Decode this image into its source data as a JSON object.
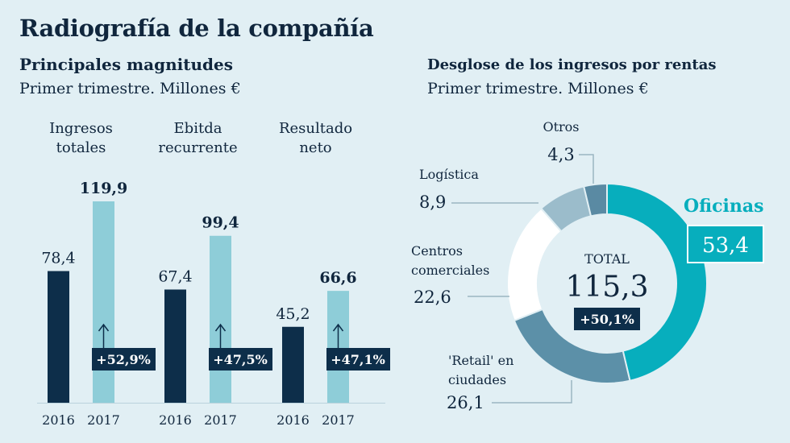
{
  "title": "Radiografía de la compañía",
  "left_panel": {
    "title": "Principales magnitudes",
    "subtitle": "Primer trimestre. Millones €"
  },
  "right_panel": {
    "title": "Desglose de los ingresos por rentas",
    "subtitle": "Primer trimestre. Millones €"
  },
  "colors": {
    "background": "#e1eff4",
    "bar_2016": "#0d2e4a",
    "bar_2017": "#8ecdd8",
    "badge": "#0d2e4a",
    "oficinas": "#07aebd",
    "retail": "#5c90a8",
    "centros": "#ffffff",
    "logistica": "#9bbccb",
    "otros": "#5a8aa3"
  },
  "chart_data": [
    {
      "type": "bar",
      "groups": [
        {
          "label": "Ingresos totales",
          "label_lines": [
            "Ingresos",
            "totales"
          ],
          "values": [
            78.4,
            119.9
          ],
          "value_labels": [
            "78,4",
            "119,9"
          ],
          "change": "+52,9%"
        },
        {
          "label": "Ebitda recurrente",
          "label_lines": [
            "Ebitda",
            "recurrente"
          ],
          "values": [
            67.4,
            99.4
          ],
          "value_labels": [
            "67,4",
            "99,4"
          ],
          "change": "+47,5%"
        },
        {
          "label": "Resultado neto",
          "label_lines": [
            "Resultado",
            "neto"
          ],
          "values": [
            45.2,
            66.6
          ],
          "value_labels": [
            "45,2",
            "66,6"
          ],
          "change": "+47,1%"
        }
      ],
      "categories": [
        "2016",
        "2017"
      ],
      "ylim": [
        0,
        119.9
      ]
    },
    {
      "type": "pie",
      "donut": true,
      "center_label": "TOTAL",
      "total": "115,3",
      "total_change": "+50,1%",
      "slices": [
        {
          "name": "Oficinas",
          "value": 53.4,
          "value_label": "53,4"
        },
        {
          "name": "'Retail' en ciudades",
          "name_lines": [
            "'Retail' en",
            "ciudades"
          ],
          "value": 26.1,
          "value_label": "26,1"
        },
        {
          "name": "Centros comerciales",
          "name_lines": [
            "Centros",
            "comerciales"
          ],
          "value": 22.6,
          "value_label": "22,6"
        },
        {
          "name": "Logística",
          "name_lines": [
            "Logística"
          ],
          "value": 8.9,
          "value_label": "8,9"
        },
        {
          "name": "Otros",
          "name_lines": [
            "Otros"
          ],
          "value": 4.3,
          "value_label": "4,3"
        }
      ]
    }
  ]
}
